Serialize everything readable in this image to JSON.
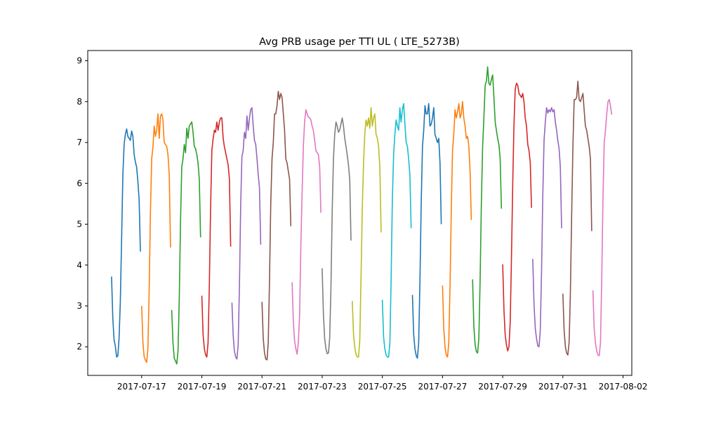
{
  "chart_data": {
    "type": "line",
    "title": "Avg PRB usage per TTI UL ( LTE_5273B)",
    "xlabel": "",
    "ylabel": "",
    "x_unit": "date",
    "xlim": [
      "2017-07-15 05:00",
      "2017-08-02 07:00"
    ],
    "ylim": [
      1.3,
      9.25
    ],
    "x_ticks": [
      "2017-07-17",
      "2017-07-19",
      "2017-07-21",
      "2017-07-23",
      "2017-07-25",
      "2017-07-27",
      "2017-07-29",
      "2017-07-31",
      "2017-08-02"
    ],
    "y_ticks": [
      2,
      3,
      4,
      5,
      6,
      7,
      8,
      9
    ],
    "grid": false,
    "colors": [
      "#1f77b4",
      "#ff7f0e",
      "#2ca02c",
      "#d62728",
      "#9467bd",
      "#8c564b",
      "#e377c2",
      "#7f7f7f",
      "#bcbd22",
      "#17becf"
    ],
    "series": [
      {
        "date": "2017-07-16",
        "hours": [
          0,
          1,
          2,
          3,
          4,
          5,
          6,
          7,
          8,
          9,
          10,
          11,
          12,
          13,
          14,
          15,
          16,
          17,
          18,
          19,
          20,
          21,
          22,
          23
        ],
        "values": [
          3.72,
          2.7,
          2.17,
          2.02,
          1.75,
          1.78,
          2.2,
          3.1,
          4.6,
          6.2,
          6.95,
          7.2,
          7.33,
          7.15,
          7.1,
          7.05,
          7.28,
          7.15,
          6.7,
          6.52,
          6.4,
          6.05,
          5.6,
          4.33
        ]
      },
      {
        "date": "2017-07-17",
        "hours": [
          0,
          1,
          2,
          3,
          4,
          5,
          6,
          7,
          8,
          9,
          10,
          11,
          12,
          13,
          14,
          15,
          16,
          17,
          18,
          19,
          20,
          21,
          22,
          23
        ],
        "values": [
          3.0,
          2.1,
          1.75,
          1.68,
          1.62,
          1.95,
          3.4,
          5.3,
          6.6,
          6.9,
          7.4,
          7.15,
          7.3,
          7.7,
          7.1,
          7.65,
          7.7,
          7.55,
          7.0,
          6.95,
          6.9,
          6.7,
          6.2,
          4.43
        ]
      },
      {
        "date": "2017-07-18",
        "hours": [
          0,
          1,
          2,
          3,
          4,
          5,
          6,
          7,
          8,
          9,
          10,
          11,
          12,
          13,
          14,
          15,
          16,
          17,
          18,
          19,
          20,
          21,
          22,
          23
        ],
        "values": [
          2.9,
          2.1,
          1.72,
          1.65,
          1.58,
          1.9,
          3.2,
          5.0,
          6.4,
          6.6,
          6.95,
          6.75,
          7.35,
          7.1,
          7.4,
          7.45,
          7.5,
          7.25,
          6.9,
          6.85,
          6.7,
          6.5,
          6.1,
          4.68
        ]
      },
      {
        "date": "2017-07-19",
        "hours": [
          0,
          1,
          2,
          3,
          4,
          5,
          6,
          7,
          8,
          9,
          10,
          11,
          12,
          13,
          14,
          15,
          16,
          17,
          18,
          19,
          20,
          21,
          22,
          23
        ],
        "values": [
          3.25,
          2.3,
          1.95,
          1.8,
          1.75,
          2.1,
          3.5,
          5.4,
          6.8,
          7.1,
          7.3,
          7.25,
          7.5,
          7.3,
          7.5,
          7.6,
          7.6,
          7.1,
          6.9,
          6.75,
          6.6,
          6.45,
          6.1,
          4.45
        ]
      },
      {
        "date": "2017-07-20",
        "hours": [
          0,
          1,
          2,
          3,
          4,
          5,
          6,
          7,
          8,
          9,
          10,
          11,
          12,
          13,
          14,
          15,
          16,
          17,
          18,
          19,
          20,
          21,
          22,
          23
        ],
        "values": [
          3.08,
          2.3,
          1.9,
          1.75,
          1.7,
          2.05,
          3.5,
          5.5,
          6.65,
          6.8,
          7.25,
          7.1,
          7.65,
          7.3,
          7.6,
          7.8,
          7.85,
          7.4,
          7.05,
          6.95,
          6.6,
          6.2,
          5.9,
          4.5
        ]
      },
      {
        "date": "2017-07-21",
        "hours": [
          0,
          1,
          2,
          3,
          4,
          5,
          6,
          7,
          8,
          9,
          10,
          11,
          12,
          13,
          14,
          15,
          16,
          17,
          18,
          19,
          20,
          21,
          22,
          23
        ],
        "values": [
          3.1,
          2.2,
          1.85,
          1.7,
          1.68,
          2.1,
          3.6,
          5.5,
          6.6,
          7.0,
          7.7,
          7.7,
          7.9,
          8.25,
          8.05,
          8.2,
          8.1,
          7.7,
          7.3,
          6.6,
          6.5,
          6.3,
          6.1,
          4.95
        ]
      },
      {
        "date": "2017-07-22",
        "hours": [
          0,
          1,
          2,
          3,
          4,
          5,
          6,
          7,
          8,
          9,
          10,
          11,
          12,
          13,
          14,
          15,
          16,
          17,
          18,
          19,
          20,
          21,
          22,
          23
        ],
        "values": [
          3.58,
          2.6,
          2.15,
          1.95,
          1.82,
          2.1,
          2.8,
          4.5,
          5.8,
          6.9,
          7.5,
          7.8,
          7.7,
          7.62,
          7.6,
          7.55,
          7.4,
          7.3,
          7.05,
          6.8,
          6.75,
          6.7,
          6.4,
          5.28
        ]
      },
      {
        "date": "2017-07-23",
        "hours": [
          0,
          1,
          2,
          3,
          4,
          5,
          6,
          7,
          8,
          9,
          10,
          11,
          12,
          13,
          14,
          15,
          16,
          17,
          18,
          19,
          20,
          21,
          22,
          23
        ],
        "values": [
          3.92,
          2.8,
          2.2,
          1.95,
          1.83,
          1.85,
          2.2,
          3.4,
          5.3,
          6.6,
          7.2,
          7.5,
          7.4,
          7.25,
          7.3,
          7.45,
          7.6,
          7.4,
          7.1,
          6.9,
          6.7,
          6.45,
          6.1,
          4.6
        ]
      },
      {
        "date": "2017-07-24",
        "hours": [
          0,
          1,
          2,
          3,
          4,
          5,
          6,
          7,
          8,
          9,
          10,
          11,
          12,
          13,
          14,
          15,
          16,
          17,
          18,
          19,
          20,
          21,
          22,
          23
        ],
        "values": [
          3.12,
          2.3,
          1.98,
          1.82,
          1.75,
          1.75,
          2.15,
          3.7,
          5.4,
          6.5,
          7.2,
          7.55,
          7.4,
          7.6,
          7.35,
          7.85,
          7.4,
          7.6,
          7.7,
          7.2,
          7.1,
          6.9,
          6.4,
          4.8
        ]
      },
      {
        "date": "2017-07-25",
        "hours": [
          0,
          1,
          2,
          3,
          4,
          5,
          6,
          7,
          8,
          9,
          10,
          11,
          12,
          13,
          14,
          15,
          16,
          17,
          18,
          19,
          20,
          21,
          22,
          23
        ],
        "values": [
          3.15,
          2.25,
          1.95,
          1.8,
          1.75,
          1.75,
          2.1,
          3.6,
          5.6,
          6.7,
          7.2,
          7.55,
          7.4,
          7.3,
          7.85,
          7.5,
          7.8,
          7.95,
          7.45,
          7.0,
          6.9,
          6.6,
          6.2,
          4.9
        ]
      },
      {
        "date": "2017-07-26",
        "hours": [
          0,
          1,
          2,
          3,
          4,
          5,
          6,
          7,
          8,
          9,
          10,
          11,
          12,
          13,
          14,
          15,
          16,
          17,
          18,
          19,
          20,
          21,
          22,
          23
        ],
        "values": [
          3.27,
          2.3,
          1.95,
          1.78,
          1.72,
          2.1,
          3.6,
          5.5,
          6.9,
          7.3,
          7.9,
          7.7,
          7.7,
          7.95,
          7.4,
          7.45,
          7.6,
          7.85,
          7.2,
          7.1,
          7.0,
          7.1,
          6.5,
          5.0
        ]
      },
      {
        "date": "2017-07-27",
        "hours": [
          0,
          1,
          2,
          3,
          4,
          5,
          6,
          7,
          8,
          9,
          10,
          11,
          12,
          13,
          14,
          15,
          16,
          17,
          18,
          19,
          20,
          21,
          22,
          23
        ],
        "values": [
          3.5,
          2.45,
          2.0,
          1.8,
          1.75,
          2.1,
          3.5,
          5.4,
          6.8,
          7.2,
          7.8,
          7.6,
          7.75,
          7.95,
          7.6,
          7.7,
          8.0,
          7.6,
          7.4,
          7.1,
          7.15,
          6.9,
          6.3,
          5.1
        ]
      },
      {
        "date": "2017-07-28",
        "hours": [
          0,
          1,
          2,
          3,
          4,
          5,
          6,
          7,
          8,
          9,
          10,
          11,
          12,
          13,
          14,
          15,
          16,
          17,
          18,
          19,
          20,
          21,
          22,
          23
        ],
        "values": [
          3.65,
          2.5,
          2.05,
          1.88,
          1.85,
          2.2,
          3.6,
          5.5,
          6.9,
          7.6,
          8.4,
          8.5,
          8.85,
          8.45,
          8.4,
          8.55,
          8.65,
          8.1,
          7.5,
          7.3,
          7.1,
          6.95,
          6.6,
          5.38
        ]
      },
      {
        "date": "2017-07-29",
        "hours": [
          0,
          1,
          2,
          3,
          4,
          5,
          6,
          7,
          8,
          9,
          10,
          11,
          12,
          13,
          14,
          15,
          16,
          17,
          18,
          19,
          20,
          21,
          22,
          23
        ],
        "values": [
          4.02,
          2.9,
          2.3,
          2.05,
          1.9,
          2.0,
          2.6,
          4.2,
          6.0,
          7.4,
          8.3,
          8.45,
          8.4,
          8.2,
          8.15,
          8.1,
          8.2,
          8.0,
          7.6,
          7.4,
          6.95,
          6.8,
          6.5,
          5.4
        ]
      },
      {
        "date": "2017-07-30",
        "hours": [
          0,
          1,
          2,
          3,
          4,
          5,
          6,
          7,
          8,
          9,
          10,
          11,
          12,
          13,
          14,
          15,
          16,
          17,
          18,
          19,
          20,
          21,
          22,
          23
        ],
        "values": [
          4.15,
          3.05,
          2.45,
          2.2,
          2.02,
          2.0,
          2.4,
          3.8,
          5.7,
          7.05,
          7.5,
          7.85,
          7.72,
          7.8,
          7.75,
          7.85,
          7.75,
          7.8,
          7.5,
          7.3,
          7.05,
          6.85,
          6.4,
          4.9
        ]
      },
      {
        "date": "2017-07-31",
        "hours": [
          0,
          1,
          2,
          3,
          4,
          5,
          6,
          7,
          8,
          9,
          10,
          11,
          12,
          13,
          14,
          15,
          16,
          17,
          18,
          19,
          20,
          21,
          22,
          23
        ],
        "values": [
          3.3,
          2.4,
          2.0,
          1.85,
          1.8,
          2.1,
          3.3,
          5.2,
          6.9,
          8.05,
          8.05,
          8.1,
          8.5,
          8.05,
          8.0,
          8.1,
          8.2,
          7.8,
          7.4,
          7.3,
          7.1,
          6.9,
          6.6,
          4.83
        ]
      },
      {
        "date": "2017-08-01",
        "hours": [
          0,
          1,
          2,
          3,
          4,
          5,
          6,
          7,
          8,
          9,
          10,
          11,
          12,
          13,
          14,
          15
        ],
        "values": [
          3.38,
          2.45,
          2.1,
          1.9,
          1.8,
          1.78,
          2.1,
          3.6,
          5.6,
          7.0,
          7.3,
          7.7,
          8.0,
          8.05,
          7.9,
          7.68
        ]
      }
    ]
  }
}
